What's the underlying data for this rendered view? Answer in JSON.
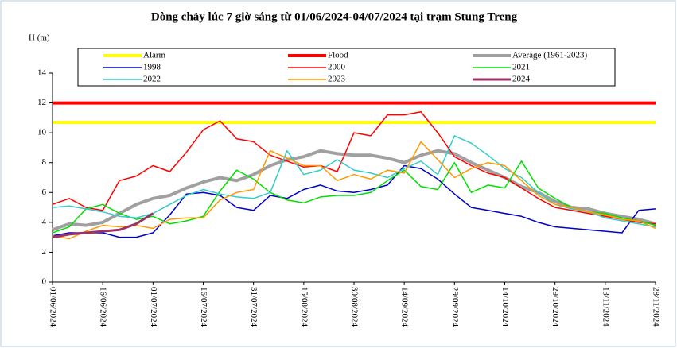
{
  "chart_data": {
    "type": "line",
    "title": "Dòng chảy lúc 7 giờ sáng từ 01/06/2024-04/07/2024 tại trạm Stung Treng",
    "y_label": "H (m)",
    "x": [
      "01/06/2024",
      "06/06/2024",
      "11/06/2024",
      "16/06/2024",
      "21/06/2024",
      "26/06/2024",
      "01/07/2024",
      "06/07/2024",
      "11/07/2024",
      "16/07/2024",
      "21/07/2024",
      "26/07/2024",
      "31/07/2024",
      "05/08/2024",
      "10/08/2024",
      "15/08/2024",
      "20/08/2024",
      "25/08/2024",
      "30/08/2024",
      "04/09/2024",
      "09/09/2024",
      "14/09/2024",
      "19/09/2024",
      "24/09/2024",
      "29/09/2024",
      "04/10/2024",
      "09/10/2024",
      "14/10/2024",
      "19/10/2024",
      "24/10/2024",
      "29/10/2024",
      "03/11/2024",
      "08/11/2024",
      "13/11/2024",
      "18/11/2024",
      "23/11/2024",
      "28/11/2024"
    ],
    "xticks": [
      "01/06/2024",
      "16/06/2024",
      "01/07/2024",
      "16/07/2024",
      "31/07/2024",
      "15/08/2024",
      "30/08/2024",
      "14/09/2024",
      "29/09/2024",
      "14/10/2024",
      "29/10/2024",
      "13/11/2024",
      "28/11/2024"
    ],
    "ylim": [
      0,
      14
    ],
    "yticks": [
      0,
      2,
      4,
      6,
      8,
      10,
      12,
      14
    ],
    "series": [
      {
        "name": "Alarm",
        "color": "#ffff00",
        "line_width": 4,
        "values": [
          10.7,
          10.7,
          10.7,
          10.7,
          10.7,
          10.7,
          10.7,
          10.7,
          10.7,
          10.7,
          10.7,
          10.7,
          10.7,
          10.7,
          10.7,
          10.7,
          10.7,
          10.7,
          10.7,
          10.7,
          10.7,
          10.7,
          10.7,
          10.7,
          10.7,
          10.7,
          10.7,
          10.7,
          10.7,
          10.7,
          10.7,
          10.7,
          10.7,
          10.7,
          10.7,
          10.7,
          10.7
        ]
      },
      {
        "name": "Flood",
        "color": "#ff0000",
        "line_width": 4,
        "values": [
          12,
          12,
          12,
          12,
          12,
          12,
          12,
          12,
          12,
          12,
          12,
          12,
          12,
          12,
          12,
          12,
          12,
          12,
          12,
          12,
          12,
          12,
          12,
          12,
          12,
          12,
          12,
          12,
          12,
          12,
          12,
          12,
          12,
          12,
          12,
          12,
          12
        ]
      },
      {
        "name": "Average (1961-2023)",
        "color": "#a0a0a0",
        "line_width": 4,
        "values": [
          3.5,
          3.9,
          3.8,
          4.0,
          4.6,
          5.2,
          5.6,
          5.8,
          6.3,
          6.7,
          7.0,
          6.8,
          7.2,
          7.8,
          8.2,
          8.4,
          8.8,
          8.6,
          8.5,
          8.5,
          8.3,
          8.0,
          8.5,
          8.8,
          8.6,
          8.0,
          7.5,
          7.0,
          6.4,
          6.0,
          5.4,
          5.0,
          4.9,
          4.6,
          4.4,
          4.2,
          3.9
        ]
      },
      {
        "name": "1998",
        "color": "#0000cc",
        "line_width": 1.5,
        "values": [
          3.1,
          3.3,
          3.3,
          3.3,
          3.0,
          3.0,
          3.3,
          4.5,
          5.9,
          6.0,
          5.8,
          5.0,
          4.8,
          5.8,
          5.6,
          6.2,
          6.5,
          6.1,
          6.0,
          6.2,
          6.5,
          7.8,
          7.6,
          6.9,
          5.9,
          5.0,
          4.8,
          4.6,
          4.4,
          4.0,
          3.7,
          3.6,
          3.5,
          3.4,
          3.3,
          4.8,
          4.9
        ]
      },
      {
        "name": "2000",
        "color": "#ff0000",
        "line_width": 1.5,
        "values": [
          5.2,
          5.6,
          5.0,
          4.8,
          6.8,
          7.1,
          7.8,
          7.4,
          8.7,
          10.2,
          10.8,
          9.6,
          9.4,
          8.5,
          8.1,
          7.7,
          7.8,
          7.4,
          10.0,
          9.8,
          11.2,
          11.2,
          11.4,
          10.0,
          8.4,
          7.8,
          7.3,
          7.0,
          6.3,
          5.6,
          5.0,
          4.8,
          4.6,
          4.4,
          4.2,
          4.0,
          3.9
        ]
      },
      {
        "name": "2021",
        "color": "#00e000",
        "line_width": 1.5,
        "values": [
          3.3,
          3.7,
          4.9,
          5.2,
          4.6,
          4.2,
          4.4,
          3.9,
          4.1,
          4.4,
          6.1,
          7.5,
          6.9,
          6.0,
          5.5,
          5.3,
          5.7,
          5.8,
          5.8,
          6.0,
          6.8,
          7.5,
          6.4,
          6.2,
          8.0,
          6.0,
          6.5,
          6.3,
          8.1,
          6.3,
          5.6,
          5.0,
          4.7,
          4.6,
          4.3,
          4.1,
          3.8
        ]
      },
      {
        "name": "2022",
        "color": "#33cccc",
        "line_width": 1.5,
        "values": [
          5.0,
          5.1,
          4.9,
          4.7,
          4.4,
          4.3,
          4.6,
          5.2,
          5.8,
          6.2,
          5.9,
          5.7,
          5.6,
          6.0,
          8.8,
          7.2,
          7.5,
          8.2,
          7.5,
          7.3,
          7.0,
          7.6,
          8.1,
          7.2,
          9.8,
          9.3,
          8.5,
          7.6,
          7.0,
          6.0,
          5.2,
          4.9,
          4.7,
          4.3,
          4.1,
          3.9,
          3.7
        ]
      },
      {
        "name": "2023",
        "color": "#ff9900",
        "line_width": 1.5,
        "values": [
          3.1,
          2.9,
          3.4,
          3.8,
          3.7,
          3.8,
          3.6,
          4.2,
          4.3,
          4.3,
          5.5,
          6.0,
          6.2,
          8.8,
          8.3,
          7.8,
          7.8,
          6.8,
          7.2,
          6.9,
          7.5,
          7.3,
          9.4,
          8.2,
          7.0,
          7.6,
          8.0,
          7.8,
          6.8,
          5.8,
          5.2,
          5.0,
          4.7,
          4.5,
          4.2,
          4.1,
          3.6
        ]
      },
      {
        "name": "2024",
        "color": "#993366",
        "line_width": 3,
        "values": [
          3.0,
          3.2,
          3.3,
          3.4,
          3.5,
          3.9,
          4.6,
          null,
          null,
          null,
          null,
          null,
          null,
          null,
          null,
          null,
          null,
          null,
          null,
          null,
          null,
          null,
          null,
          null,
          null,
          null,
          null,
          null,
          null,
          null,
          null,
          null,
          null,
          null,
          null,
          null,
          null
        ]
      }
    ]
  }
}
